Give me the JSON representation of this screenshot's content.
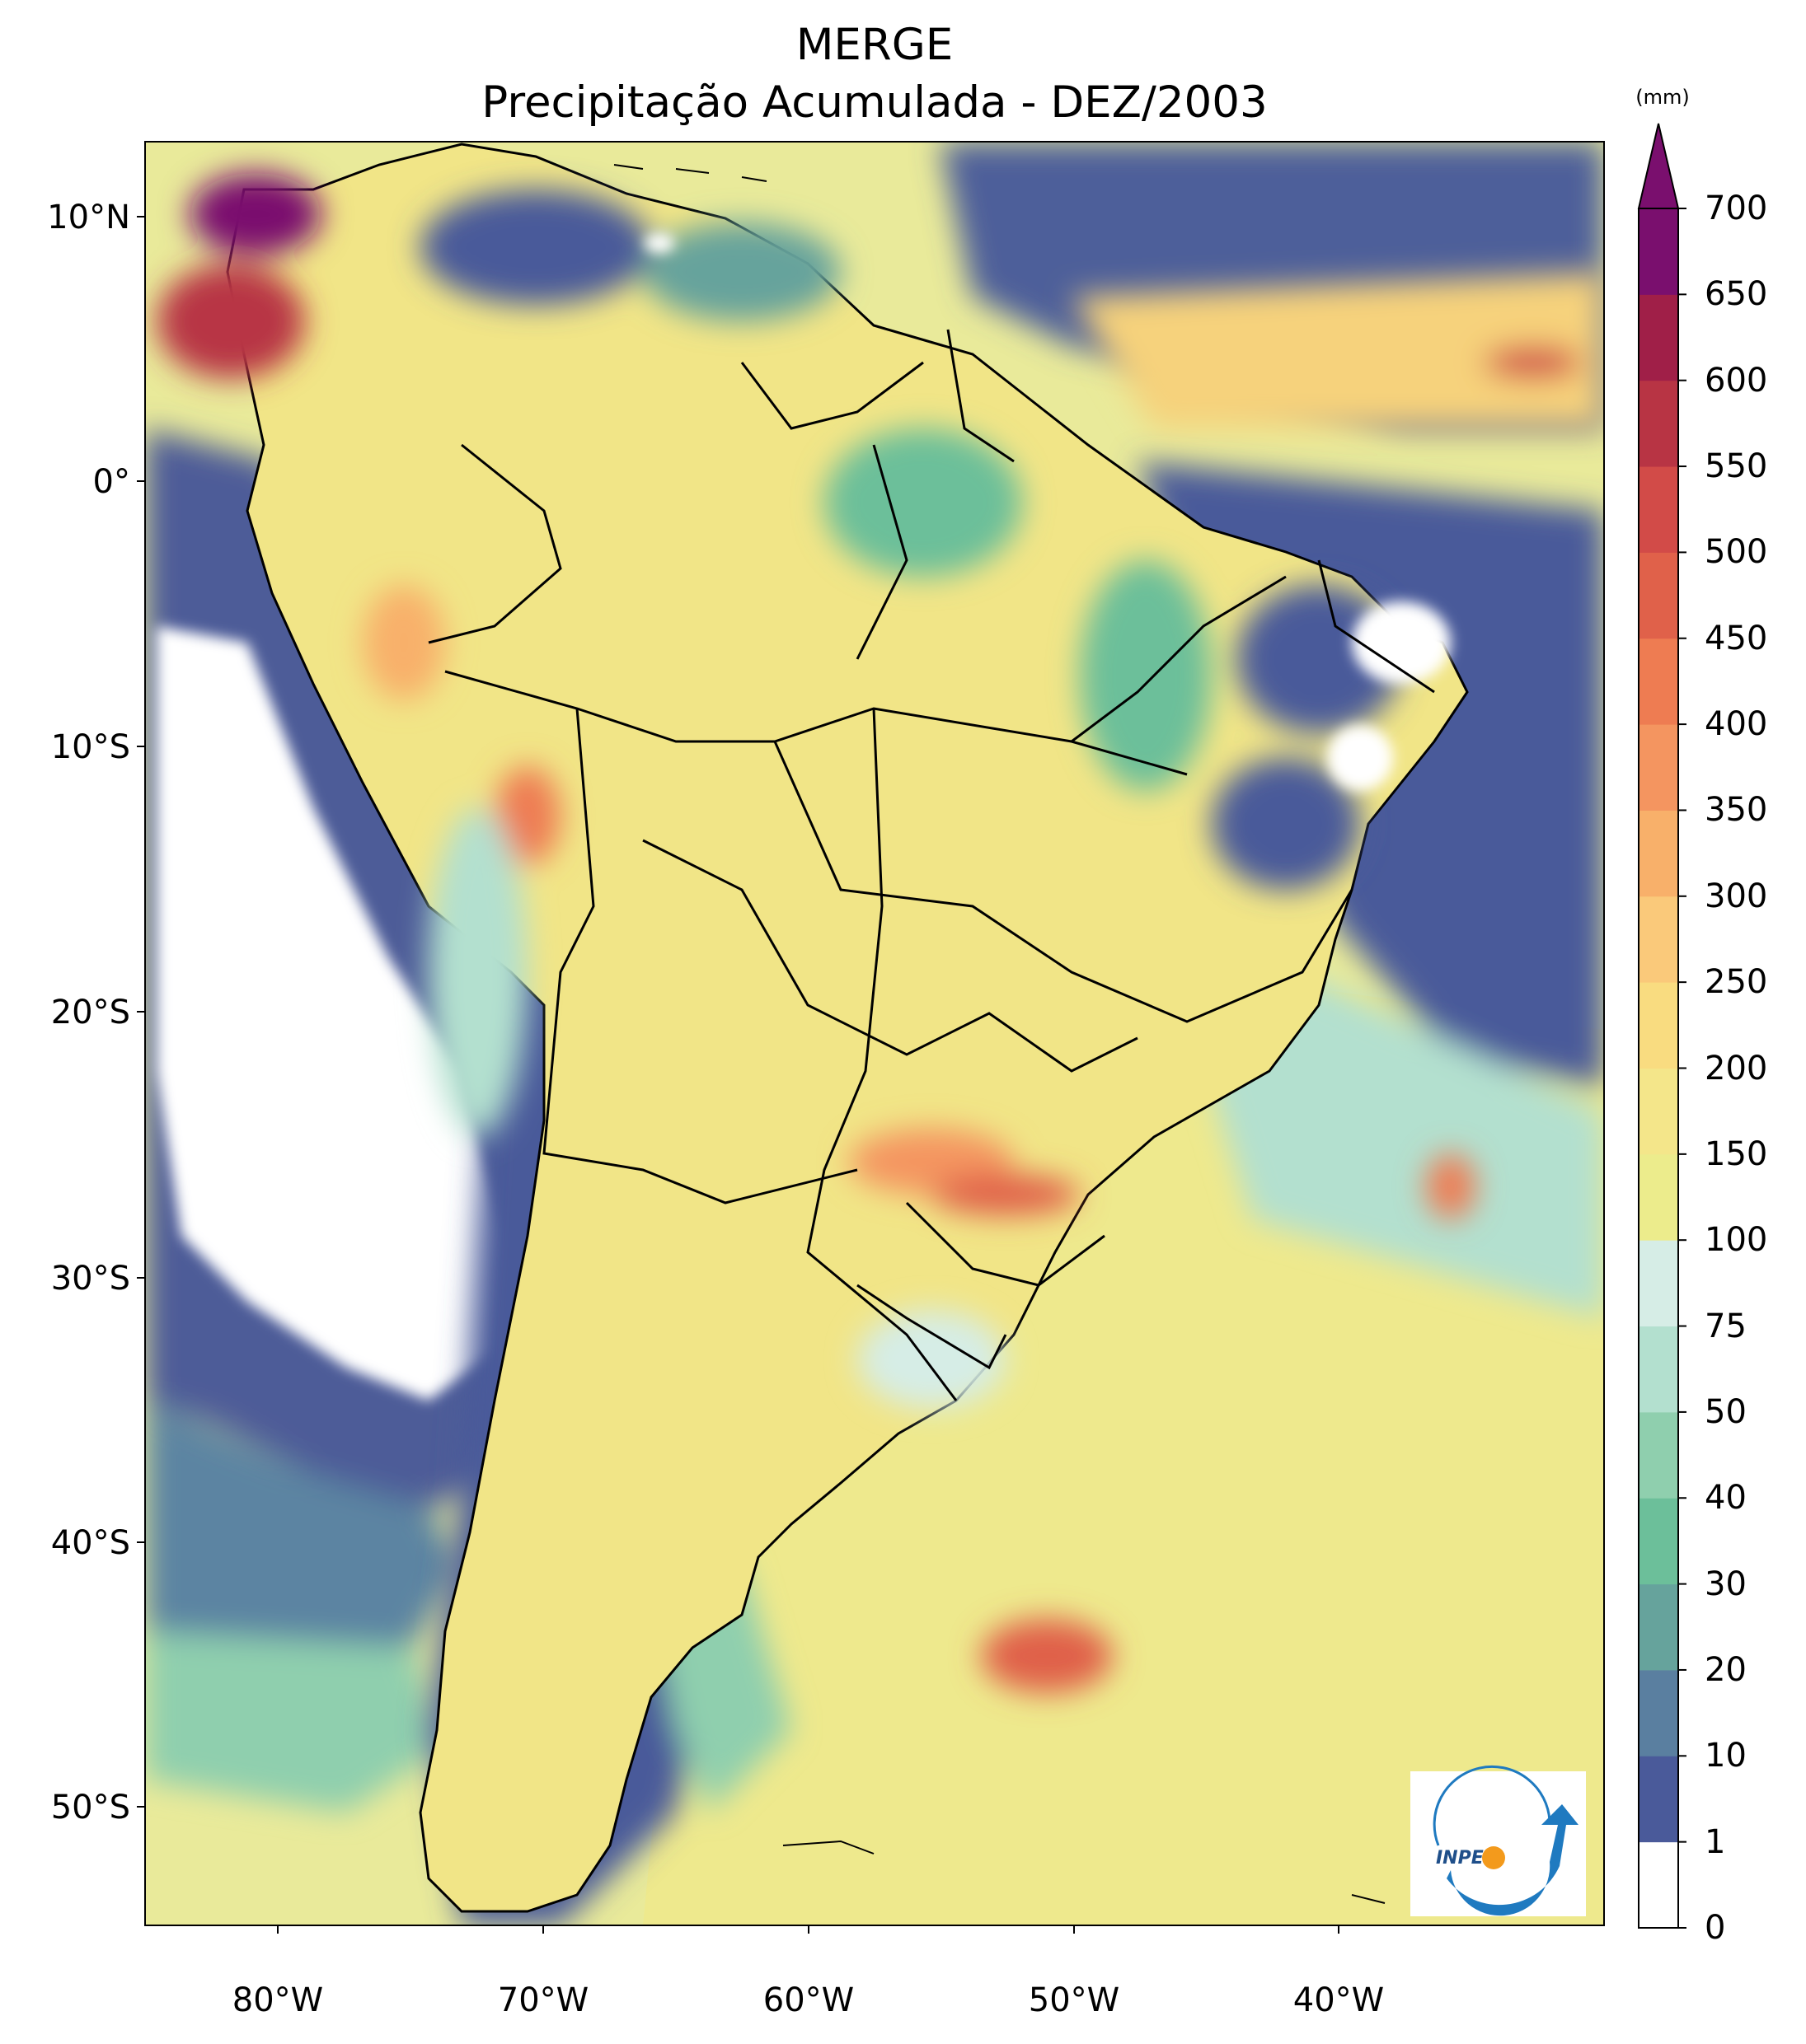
{
  "title": {
    "line1": "MERGE",
    "line2": "Precipitação Acumulada - DEZ/2003"
  },
  "map": {
    "region": "South America",
    "lat_ticks": [
      "10°N",
      "0°",
      "10°S",
      "20°S",
      "30°S",
      "40°S",
      "50°S"
    ],
    "lon_ticks": [
      "80°W",
      "70°W",
      "60°W",
      "50°W",
      "40°W"
    ],
    "field": "accumulated precipitation"
  },
  "colorbar": {
    "unit": "(mm)",
    "levels": [
      "0",
      "1",
      "10",
      "20",
      "30",
      "40",
      "50",
      "75",
      "100",
      "150",
      "200",
      "250",
      "300",
      "350",
      "400",
      "450",
      "500",
      "550",
      "600",
      "650",
      "700"
    ],
    "colors": [
      "#ffffff",
      "#4a5a9a",
      "#5a7fa0",
      "#66a39c",
      "#6cbf9a",
      "#8fcfae",
      "#b3e0cf",
      "#d6ede6",
      "#ecec8c",
      "#f4e68a",
      "#f9dc80",
      "#fac97a",
      "#f8b06a",
      "#f49560",
      "#ee7c52",
      "#e0614a",
      "#d24b48",
      "#b83444",
      "#a01f48",
      "#7a0f6e"
    ],
    "extend_color": "#7a0f6e"
  },
  "logo": {
    "text": "INPE",
    "accent": "#1f7ac0",
    "dot": "#f39a1c"
  },
  "colors": {
    "land_mid": "#f2e388",
    "ocean_dry": "#4a5a9a",
    "ocean_mid": "#d6ede6",
    "borders": "#000000"
  }
}
